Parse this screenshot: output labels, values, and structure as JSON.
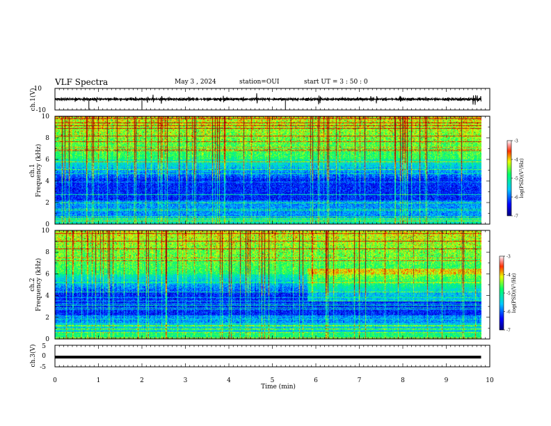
{
  "header": {
    "title": "VLF Spectra",
    "date": "May 3  , 2024",
    "station": "station=OUI",
    "start": "start  UT  =   3  : 50 : 0"
  },
  "chart_data": [
    {
      "type": "line",
      "name": "ch1-waveform",
      "ylabel": "ch.1(V)",
      "ylim": [
        -10,
        10
      ],
      "yticks": [
        "10",
        "-10"
      ],
      "xlim": [
        0,
        10
      ],
      "baseline_v": 0
    },
    {
      "type": "heatmap",
      "name": "ch1-spectrogram",
      "ylabel": "ch.1\nFrequency  (kHz)",
      "ylim": [
        0,
        10
      ],
      "yticks": [
        "0",
        "2",
        "4",
        "6",
        "8",
        "10"
      ],
      "xlim": [
        0,
        10
      ],
      "data_end_min": 9.8,
      "colorbar": {
        "label": "log(PSD)(V²/Hz)",
        "range": [
          -7,
          -3
        ],
        "ticks": [
          "-3",
          "-4",
          "-5",
          "-6",
          "-7"
        ]
      }
    },
    {
      "type": "heatmap",
      "name": "ch2-spectrogram",
      "ylabel": "ch.2\nFrequency  (kHz)",
      "ylim": [
        0,
        10
      ],
      "yticks": [
        "0",
        "2",
        "4",
        "6",
        "8",
        "10"
      ],
      "xlim": [
        0,
        10
      ],
      "data_end_min": 9.8,
      "colorbar": {
        "label": "log(PSD)(V²/Hz)",
        "range": [
          -7,
          -3
        ],
        "ticks": [
          "-3",
          "-4",
          "-5",
          "-6",
          "-7"
        ]
      }
    },
    {
      "type": "line",
      "name": "ch3-waveform",
      "ylabel": "ch.3(V)",
      "ylim": [
        -5,
        5
      ],
      "yticks": [
        "5",
        "0",
        "-5"
      ],
      "xlim": [
        0,
        10
      ],
      "baseline_v": -0.5
    }
  ],
  "xaxis": {
    "label": "Time  (min)",
    "ticks": [
      "0",
      "1",
      "2",
      "3",
      "4",
      "5",
      "6",
      "7",
      "8",
      "9",
      "10"
    ]
  }
}
